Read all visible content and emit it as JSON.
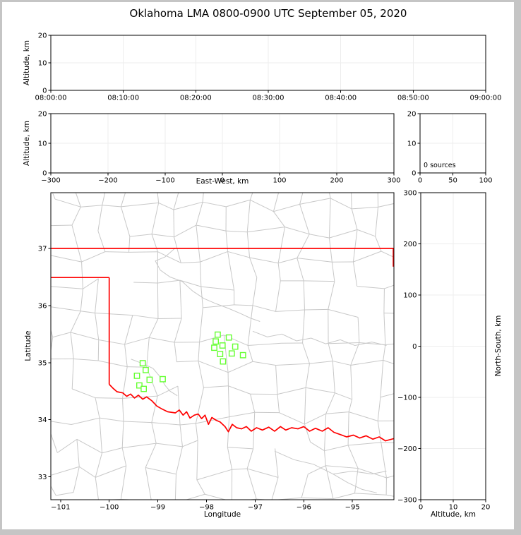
{
  "title": "Oklahoma LMA 0800-0900 UTC September 05, 2020",
  "colors": {
    "spine": "#000000",
    "grid": "#ededed",
    "county": "#c8c8c8",
    "water": "#c8c8c8",
    "state_border": "#ff0000",
    "station_edge": "#66ff33",
    "station_fill": "#ffffff",
    "background": "#ffffff",
    "frame": "#c5c5c5"
  },
  "chart_data": [
    {
      "id": "time_altitude",
      "type": "scatter",
      "xlabel": "",
      "ylabel": "Altitude, km",
      "xlim": [
        0,
        3600
      ],
      "ylim": [
        0,
        20
      ],
      "xticks": [
        {
          "v": 0,
          "label": "08:00:00"
        },
        {
          "v": 600,
          "label": "08:10:00"
        },
        {
          "v": 1200,
          "label": "08:20:00"
        },
        {
          "v": 1800,
          "label": "08:30:00"
        },
        {
          "v": 2400,
          "label": "08:40:00"
        },
        {
          "v": 3000,
          "label": "08:50:00"
        },
        {
          "v": 3600,
          "label": "09:00:00"
        }
      ],
      "yticks": [
        {
          "v": 0,
          "label": "0"
        },
        {
          "v": 10,
          "label": "10"
        },
        {
          "v": 20,
          "label": "20"
        }
      ],
      "points": []
    },
    {
      "id": "ew_altitude",
      "type": "scatter",
      "xlabel": "East-West, km",
      "ylabel": "Altitude, km",
      "xlim": [
        -300,
        300
      ],
      "ylim": [
        0,
        20
      ],
      "xticks": [
        {
          "v": -300,
          "label": "−300"
        },
        {
          "v": -200,
          "label": "−200"
        },
        {
          "v": -100,
          "label": "−100"
        },
        {
          "v": 0,
          "label": "0"
        },
        {
          "v": 100,
          "label": "100"
        },
        {
          "v": 200,
          "label": "200"
        },
        {
          "v": 300,
          "label": "300"
        }
      ],
      "yticks": [
        {
          "v": 0,
          "label": "0"
        },
        {
          "v": 10,
          "label": "10"
        },
        {
          "v": 20,
          "label": "20"
        }
      ],
      "points": []
    },
    {
      "id": "source_count",
      "type": "scatter",
      "xlabel": "",
      "ylabel": "",
      "annotation": "0 sources",
      "xlim": [
        0,
        100
      ],
      "ylim": [
        0,
        20
      ],
      "xticks": [
        {
          "v": 0,
          "label": "0"
        },
        {
          "v": 50,
          "label": "50"
        },
        {
          "v": 100,
          "label": "100"
        }
      ],
      "yticks": [
        {
          "v": 0,
          "label": "0"
        },
        {
          "v": 10,
          "label": "10"
        },
        {
          "v": 20,
          "label": "20"
        }
      ],
      "points": []
    },
    {
      "id": "plan_map",
      "type": "scatter",
      "xlabel": "Longitude",
      "ylabel": "Latitude",
      "xlim": [
        -101.2,
        -94.147
      ],
      "ylim": [
        32.6,
        37.975
      ],
      "xticks": [
        {
          "v": -101,
          "label": "−101"
        },
        {
          "v": -100,
          "label": "−100"
        },
        {
          "v": -99,
          "label": "−99"
        },
        {
          "v": -98,
          "label": "−98"
        },
        {
          "v": -97,
          "label": "−97"
        },
        {
          "v": -96,
          "label": "−96"
        },
        {
          "v": -95,
          "label": "−95"
        }
      ],
      "yticks": [
        {
          "v": 33,
          "label": "33"
        },
        {
          "v": 34,
          "label": "34"
        },
        {
          "v": 35,
          "label": "35"
        },
        {
          "v": 36,
          "label": "36"
        },
        {
          "v": 37,
          "label": "37"
        }
      ],
      "stations": [
        {
          "lon": -97.77,
          "lat": 35.49
        },
        {
          "lon": -97.54,
          "lat": 35.44
        },
        {
          "lon": -97.81,
          "lat": 35.37
        },
        {
          "lon": -97.67,
          "lat": 35.3
        },
        {
          "lon": -97.84,
          "lat": 35.26
        },
        {
          "lon": -97.41,
          "lat": 35.28
        },
        {
          "lon": -97.72,
          "lat": 35.15
        },
        {
          "lon": -97.48,
          "lat": 35.16
        },
        {
          "lon": -97.25,
          "lat": 35.13
        },
        {
          "lon": -97.66,
          "lat": 35.02
        },
        {
          "lon": -99.31,
          "lat": 34.99
        },
        {
          "lon": -99.25,
          "lat": 34.87
        },
        {
          "lon": -99.43,
          "lat": 34.77
        },
        {
          "lon": -99.17,
          "lat": 34.7
        },
        {
          "lon": -98.9,
          "lat": 34.71
        },
        {
          "lon": -99.38,
          "lat": 34.6
        },
        {
          "lon": -99.29,
          "lat": 34.54
        }
      ],
      "state_border_lines": [
        {
          "name": "kansas-border",
          "points": [
            [
              -101.2,
              37.0
            ],
            [
              -94.147,
              37.0
            ]
          ]
        },
        {
          "name": "eastern-border",
          "points": [
            [
              -94.16,
              37.0
            ],
            [
              -94.16,
              36.68
            ]
          ]
        },
        {
          "name": "panhandle-north-border",
          "points": [
            [
              -101.2,
              36.49
            ],
            [
              -100.0,
              36.49
            ]
          ]
        },
        {
          "name": "texas-100th-meridian",
          "points": [
            [
              -100.0,
              36.49
            ],
            [
              -100.0,
              34.62
            ]
          ]
        },
        {
          "name": "red-river-texas-border",
          "points": [
            [
              -100.0,
              34.62
            ],
            [
              -99.92,
              34.55
            ],
            [
              -99.84,
              34.49
            ],
            [
              -99.72,
              34.47
            ],
            [
              -99.64,
              34.41
            ],
            [
              -99.56,
              34.45
            ],
            [
              -99.48,
              34.38
            ],
            [
              -99.4,
              34.43
            ],
            [
              -99.31,
              34.36
            ],
            [
              -99.23,
              34.4
            ],
            [
              -99.12,
              34.33
            ],
            [
              -99.02,
              34.24
            ],
            [
              -98.92,
              34.19
            ],
            [
              -98.8,
              34.14
            ],
            [
              -98.64,
              34.12
            ],
            [
              -98.56,
              34.17
            ],
            [
              -98.48,
              34.08
            ],
            [
              -98.41,
              34.14
            ],
            [
              -98.34,
              34.03
            ],
            [
              -98.25,
              34.08
            ],
            [
              -98.17,
              34.1
            ],
            [
              -98.1,
              34.02
            ],
            [
              -98.03,
              34.08
            ],
            [
              -97.96,
              33.92
            ],
            [
              -97.89,
              34.04
            ],
            [
              -97.8,
              33.99
            ],
            [
              -97.72,
              33.96
            ],
            [
              -97.62,
              33.88
            ],
            [
              -97.55,
              33.79
            ],
            [
              -97.47,
              33.92
            ],
            [
              -97.38,
              33.86
            ],
            [
              -97.28,
              33.84
            ],
            [
              -97.18,
              33.88
            ],
            [
              -97.08,
              33.8
            ],
            [
              -96.97,
              33.86
            ],
            [
              -96.85,
              33.82
            ],
            [
              -96.72,
              33.87
            ],
            [
              -96.6,
              33.8
            ],
            [
              -96.48,
              33.88
            ],
            [
              -96.37,
              33.82
            ],
            [
              -96.25,
              33.86
            ],
            [
              -96.12,
              33.84
            ],
            [
              -96.0,
              33.88
            ],
            [
              -95.88,
              33.8
            ],
            [
              -95.76,
              33.85
            ],
            [
              -95.62,
              33.8
            ],
            [
              -95.5,
              33.86
            ],
            [
              -95.38,
              33.78
            ],
            [
              -95.25,
              33.74
            ],
            [
              -95.12,
              33.7
            ],
            [
              -94.98,
              33.73
            ],
            [
              -94.85,
              33.68
            ],
            [
              -94.72,
              33.72
            ],
            [
              -94.58,
              33.66
            ],
            [
              -94.45,
              33.7
            ],
            [
              -94.32,
              33.63
            ],
            [
              -94.147,
              33.67
            ]
          ]
        }
      ],
      "water_features": [
        {
          "name": "cimarron-river",
          "points": [
            [
              -98.65,
              37.0
            ],
            [
              -98.85,
              36.85
            ],
            [
              -99.05,
              36.78
            ],
            [
              -98.95,
              36.62
            ],
            [
              -98.75,
              36.5
            ],
            [
              -98.5,
              36.42
            ],
            [
              -98.28,
              36.25
            ],
            [
              -98.05,
              36.12
            ],
            [
              -97.8,
              36.03
            ],
            [
              -97.55,
              35.95
            ],
            [
              -97.3,
              35.86
            ],
            [
              -97.1,
              35.78
            ],
            [
              -96.9,
              35.72
            ]
          ]
        },
        {
          "name": "canadian-river",
          "points": [
            [
              -97.05,
              35.55
            ],
            [
              -96.75,
              35.45
            ],
            [
              -96.45,
              35.5
            ],
            [
              -96.15,
              35.38
            ],
            [
              -95.85,
              35.43
            ],
            [
              -95.55,
              35.33
            ],
            [
              -95.25,
              35.4
            ],
            [
              -94.95,
              35.3
            ],
            [
              -94.6,
              35.36
            ],
            [
              -94.3,
              35.3
            ]
          ]
        },
        {
          "name": "washita-river",
          "points": [
            [
              -99.55,
              35.06
            ],
            [
              -99.3,
              34.98
            ],
            [
              -99.1,
              34.9
            ],
            [
              -98.95,
              34.75
            ],
            [
              -98.85,
              34.6
            ],
            [
              -98.75,
              34.5
            ],
            [
              -98.6,
              34.42
            ]
          ]
        },
        {
          "name": "sulphur-river",
          "points": [
            [
              -96.6,
              33.45
            ],
            [
              -96.2,
              33.3
            ],
            [
              -95.8,
              33.22
            ],
            [
              -95.4,
              33.05
            ],
            [
              -95.1,
              32.9
            ],
            [
              -94.8,
              32.78
            ],
            [
              -94.5,
              32.72
            ]
          ]
        },
        {
          "name": "sulphur-river-branch",
          "points": [
            [
              -95.4,
              33.05
            ],
            [
              -95.0,
              33.1
            ],
            [
              -94.6,
              33.05
            ],
            [
              -94.3,
              33.1
            ]
          ]
        }
      ],
      "counties": {
        "cell_deg": [
          0.52,
          0.47
        ],
        "jitter": 0.55,
        "seed": 20200905,
        "skip": 0.13
      }
    },
    {
      "id": "ns_altitude",
      "type": "scatter",
      "xlabel": "Altitude, km",
      "ylabel": "North-South, km",
      "xlim": [
        0,
        20
      ],
      "ylim": [
        -300,
        300
      ],
      "xticks": [
        {
          "v": 0,
          "label": "0"
        },
        {
          "v": 10,
          "label": "10"
        },
        {
          "v": 20,
          "label": "20"
        }
      ],
      "yticks": [
        {
          "v": 300,
          "label": "300"
        },
        {
          "v": 200,
          "label": "200"
        },
        {
          "v": 100,
          "label": "100"
        },
        {
          "v": 0,
          "label": "0"
        },
        {
          "v": -100,
          "label": "−100"
        },
        {
          "v": -200,
          "label": "−200"
        },
        {
          "v": -300,
          "label": "−300"
        }
      ],
      "points": []
    }
  ]
}
